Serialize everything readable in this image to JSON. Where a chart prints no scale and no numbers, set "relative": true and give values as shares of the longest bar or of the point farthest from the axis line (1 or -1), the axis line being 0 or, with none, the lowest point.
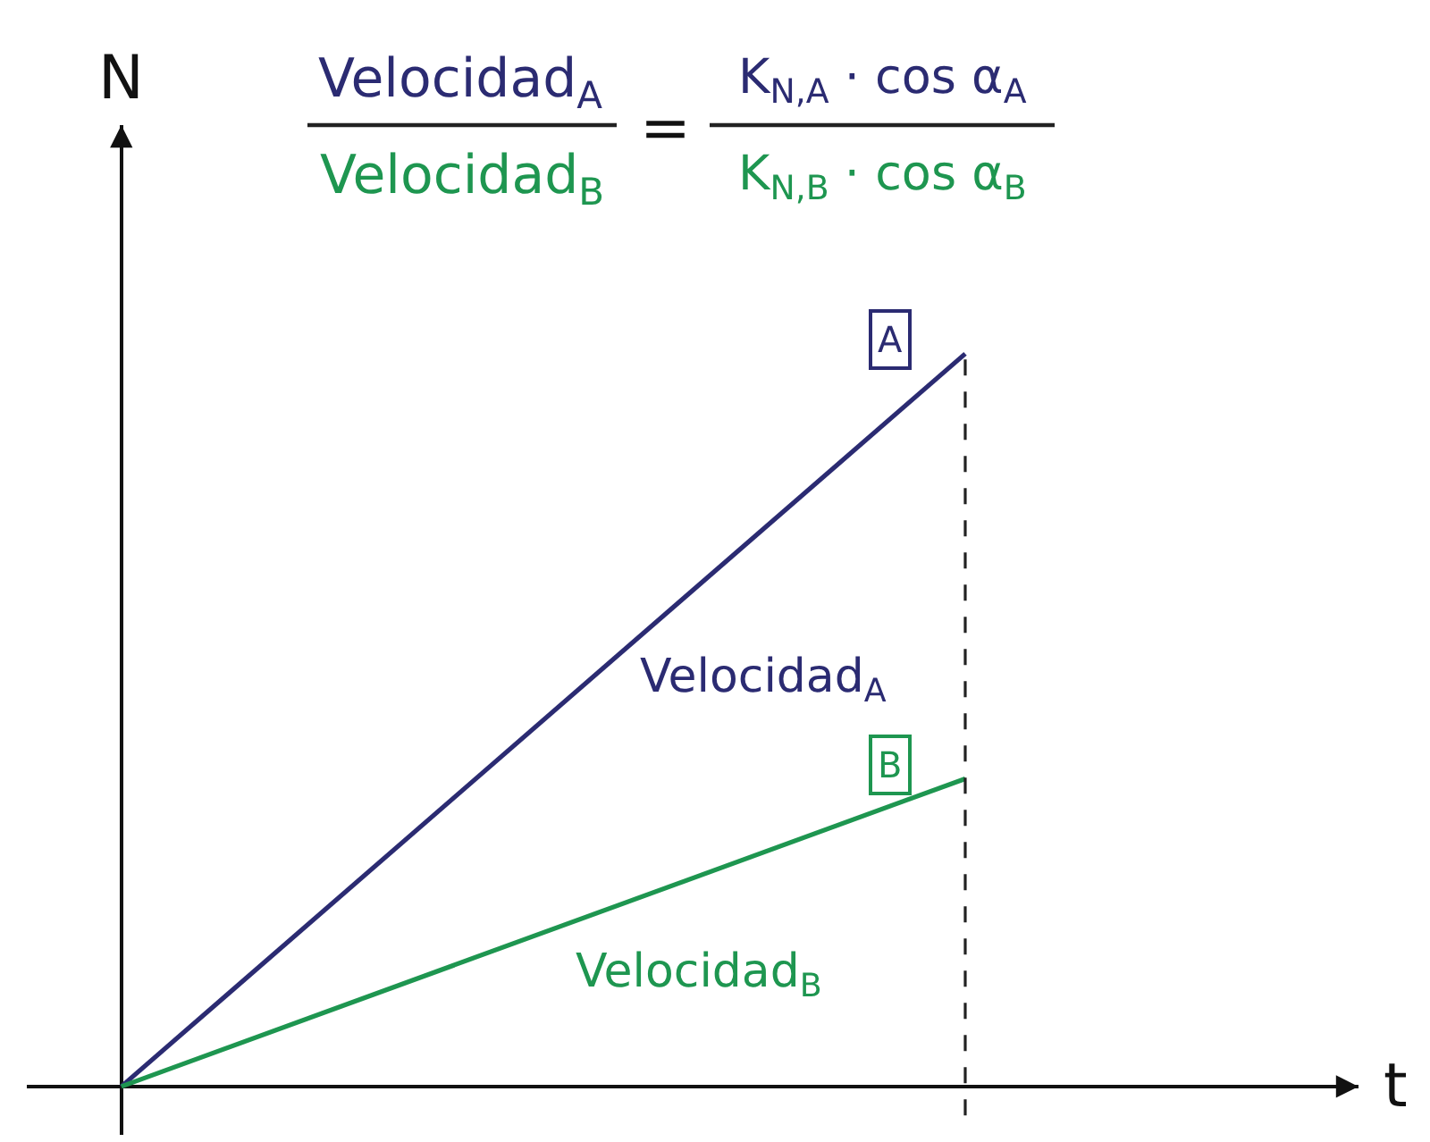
{
  "chart_data": {
    "type": "line",
    "xlabel": "t",
    "ylabel": "N",
    "categories": [
      null,
      null
    ],
    "relative": true,
    "series": [
      {
        "name": "A",
        "color": "#2b2b72",
        "values": [
          0,
          1
        ]
      },
      {
        "name": "B",
        "color": "#1e9650",
        "values": [
          0,
          0.42
        ]
      }
    ],
    "annotations": [
      "Velocidad$_{A}$",
      "Velocidad$_{B}$",
      "=",
      "K$_{N,A}$ · cos α$_{A}$",
      "K$_{N,B}$ · cos α$_{B}$",
      "Velocidad$_{A}$",
      "Velocidad$_{B}$"
    ],
    "legend": false,
    "marker": "none",
    "line_style": "solid"
  }
}
